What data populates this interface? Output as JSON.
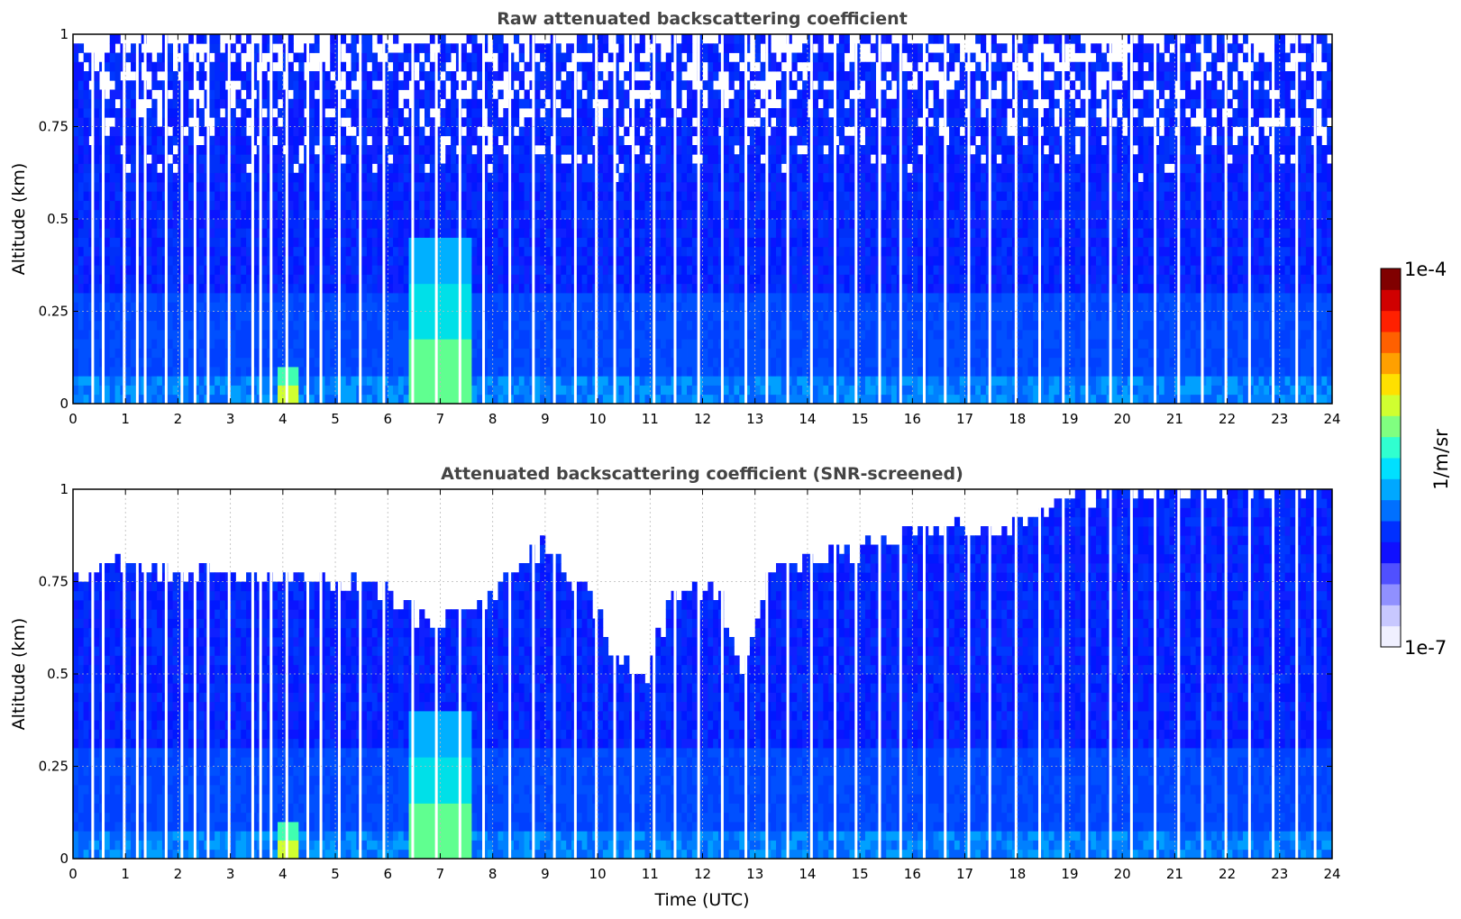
{
  "chart_data": [
    {
      "type": "heatmap",
      "title": "Raw attenuated backscattering coefficient",
      "xlabel": "",
      "ylabel": "Altitude (km)",
      "xlim": [
        0,
        24
      ],
      "ylim": [
        0,
        1
      ],
      "xticks": [
        "0",
        "1",
        "2",
        "3",
        "4",
        "5",
        "6",
        "7",
        "8",
        "9",
        "10",
        "11",
        "12",
        "13",
        "14",
        "15",
        "16",
        "17",
        "18",
        "19",
        "20",
        "21",
        "22",
        "23",
        "24"
      ],
      "yticks": [
        "0",
        "0.25",
        "0.5",
        "0.75",
        "1"
      ],
      "grid": true,
      "colormap": "jet",
      "features": [
        {
          "t_start": 3.9,
          "t_end": 4.3,
          "alt_top": 0.1,
          "level": "enhanced (green-yellow)"
        },
        {
          "t_start": 6.4,
          "t_end": 7.6,
          "alt_top": 0.45,
          "level": "enhanced (cyan-green)"
        }
      ],
      "gaps_utc": [
        0.35,
        0.55,
        0.95,
        1.2,
        1.35,
        1.75,
        2.05,
        2.3,
        2.55,
        2.95,
        3.4,
        3.55,
        3.75,
        4.05,
        4.45,
        4.7,
        5.05,
        5.45,
        5.9,
        6.45,
        6.9,
        7.35,
        7.8,
        8.3,
        8.75,
        9.15,
        9.55,
        9.95,
        10.3,
        10.65,
        11.05,
        11.45,
        11.9,
        12.35,
        12.8,
        13.2,
        13.6,
        14.05,
        14.5,
        14.9,
        15.35,
        15.75,
        16.2,
        16.6,
        17.05,
        17.45,
        17.95,
        18.4,
        18.85,
        19.3,
        19.75,
        20.15,
        20.6,
        21.05,
        21.5,
        21.95,
        22.4,
        22.85,
        23.3,
        23.65
      ]
    },
    {
      "type": "heatmap",
      "title": "Attenuated backscattering coefficient (SNR-screened)",
      "xlabel": "Time (UTC)",
      "ylabel": "Altitude (km)",
      "xlim": [
        0,
        24
      ],
      "ylim": [
        0,
        1
      ],
      "xticks": [
        "0",
        "1",
        "2",
        "3",
        "4",
        "5",
        "6",
        "7",
        "8",
        "9",
        "10",
        "11",
        "12",
        "13",
        "14",
        "15",
        "16",
        "17",
        "18",
        "19",
        "20",
        "21",
        "22",
        "23",
        "24"
      ],
      "yticks": [
        "0",
        "0.25",
        "0.5",
        "0.75",
        "1"
      ],
      "grid": true,
      "colormap": "jet",
      "screen_top_km": [
        {
          "t": 0,
          "alt": 0.78
        },
        {
          "t": 1,
          "alt": 0.8
        },
        {
          "t": 2,
          "alt": 0.78
        },
        {
          "t": 3,
          "alt": 0.77
        },
        {
          "t": 4,
          "alt": 0.76
        },
        {
          "t": 5,
          "alt": 0.75
        },
        {
          "t": 6,
          "alt": 0.72
        },
        {
          "t": 6.8,
          "alt": 0.63
        },
        {
          "t": 7.5,
          "alt": 0.66
        },
        {
          "t": 8.2,
          "alt": 0.75
        },
        {
          "t": 9,
          "alt": 0.85
        },
        {
          "t": 9.8,
          "alt": 0.72
        },
        {
          "t": 10.3,
          "alt": 0.57
        },
        {
          "t": 10.9,
          "alt": 0.47
        },
        {
          "t": 11.4,
          "alt": 0.7
        },
        {
          "t": 12.2,
          "alt": 0.75
        },
        {
          "t": 12.8,
          "alt": 0.5
        },
        {
          "t": 13.3,
          "alt": 0.8
        },
        {
          "t": 14.5,
          "alt": 0.82
        },
        {
          "t": 15.5,
          "alt": 0.85
        },
        {
          "t": 16.5,
          "alt": 0.9
        },
        {
          "t": 17.5,
          "alt": 0.88
        },
        {
          "t": 18.5,
          "alt": 0.95
        },
        {
          "t": 20,
          "alt": 1.0
        },
        {
          "t": 22,
          "alt": 1.0
        },
        {
          "t": 24,
          "alt": 1.0
        }
      ],
      "features": [
        {
          "t_start": 3.9,
          "t_end": 4.3,
          "alt_top": 0.1,
          "level": "enhanced (green-yellow)"
        },
        {
          "t_start": 6.4,
          "t_end": 7.6,
          "alt_top": 0.4,
          "level": "enhanced (cyan-green)"
        }
      ]
    }
  ],
  "colorbar": {
    "top_label": "1e-4",
    "bottom_label": "1e-7",
    "unit": "1/m/sr",
    "colors": [
      "#f0f0ff",
      "#c8c8ff",
      "#9090ff",
      "#5050ff",
      "#1010ff",
      "#0030ff",
      "#0070ff",
      "#00a8ff",
      "#00e0ff",
      "#30ffd0",
      "#80ff80",
      "#d0ff30",
      "#ffe000",
      "#ffa000",
      "#ff6000",
      "#ff2000",
      "#d00000",
      "#800000"
    ]
  }
}
